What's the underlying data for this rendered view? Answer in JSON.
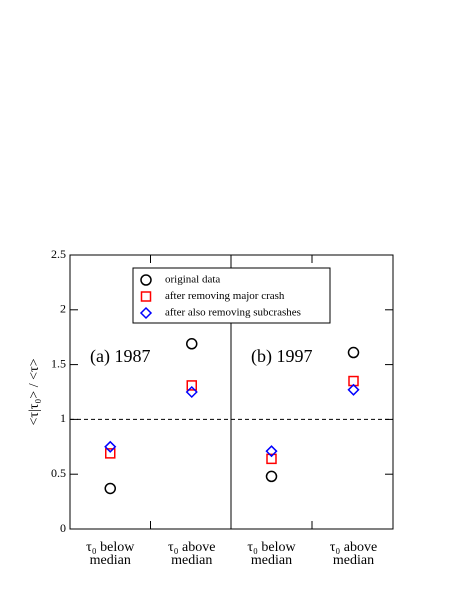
{
  "chart_data": {
    "type": "scatter",
    "ylabel": "<τ|τ₀> / <τ>",
    "series": [
      {
        "name": "original data",
        "color": "#000000",
        "marker": "circle"
      },
      {
        "name": "after removing major crash",
        "color": "#ff0000",
        "marker": "square"
      },
      {
        "name": "after also removing subcrashes",
        "color": "#0000ff",
        "marker": "diamond"
      }
    ],
    "reference_line": 1,
    "panels": [
      {
        "title": "(a) 1987",
        "categories": [
          "τ₀ below median",
          "τ₀ above median"
        ],
        "values": [
          [
            0.37,
            1.69
          ],
          [
            0.69,
            1.31
          ],
          [
            0.75,
            1.25
          ]
        ],
        "ylim": [
          0,
          2.5
        ],
        "yticks": [
          0,
          0.5,
          1,
          1.5,
          2,
          2.5
        ]
      },
      {
        "title": "(b) 1997",
        "categories": [
          "τ₀ below median",
          "τ₀ above median"
        ],
        "values": [
          [
            0.48,
            1.61
          ],
          [
            0.64,
            1.35
          ],
          [
            0.71,
            1.27
          ]
        ],
        "ylim": [
          0,
          2.5
        ],
        "yticks": [
          0,
          0.5,
          1,
          1.5,
          2,
          2.5
        ]
      }
    ]
  }
}
